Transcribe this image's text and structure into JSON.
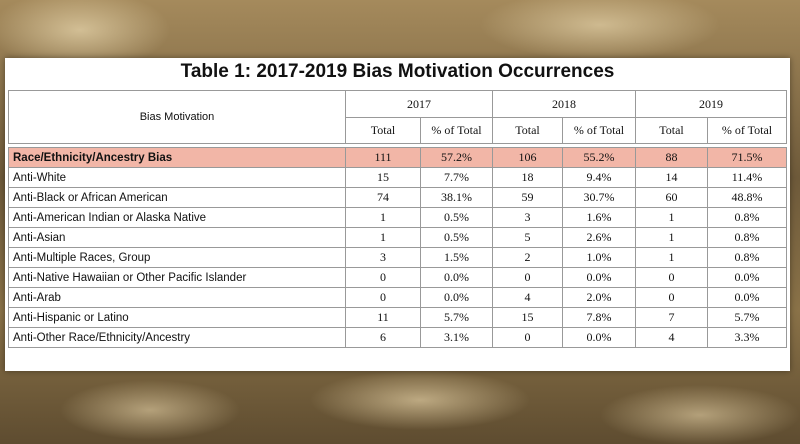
{
  "table": {
    "title": "Table 1: 2017-2019 Bias Motivation Occurrences",
    "header": {
      "label": "Bias Motivation",
      "years": [
        "2017",
        "2018",
        "2019"
      ],
      "subcolumns": [
        "Total",
        "% of Total"
      ]
    },
    "rows": [
      [
        "Race/Ethnicity/Ancestry Bias",
        "111",
        "57.2%",
        "106",
        "55.2%",
        "88",
        "71.5%"
      ],
      [
        "Anti-White",
        "15",
        "7.7%",
        "18",
        "9.4%",
        "14",
        "11.4%"
      ],
      [
        "Anti-Black or African American",
        "74",
        "38.1%",
        "59",
        "30.7%",
        "60",
        "48.8%"
      ],
      [
        "Anti-American Indian or Alaska Native",
        "1",
        "0.5%",
        "3",
        "1.6%",
        "1",
        "0.8%"
      ],
      [
        "Anti-Asian",
        "1",
        "0.5%",
        "5",
        "2.6%",
        "1",
        "0.8%"
      ],
      [
        "Anti-Multiple Races, Group",
        "3",
        "1.5%",
        "2",
        "1.0%",
        "1",
        "0.8%"
      ],
      [
        "Anti-Native Hawaiian or Other Pacific Islander",
        "0",
        "0.0%",
        "0",
        "0.0%",
        "0",
        "0.0%"
      ],
      [
        "Anti-Arab",
        "0",
        "0.0%",
        "4",
        "2.0%",
        "0",
        "0.0%"
      ],
      [
        "Anti-Hispanic or Latino",
        "11",
        "5.7%",
        "15",
        "7.8%",
        "7",
        "5.7%"
      ],
      [
        "Anti-Other Race/Ethnicity/Ancestry",
        "6",
        "3.1%",
        "0",
        "0.0%",
        "4",
        "3.3%"
      ]
    ]
  }
}
